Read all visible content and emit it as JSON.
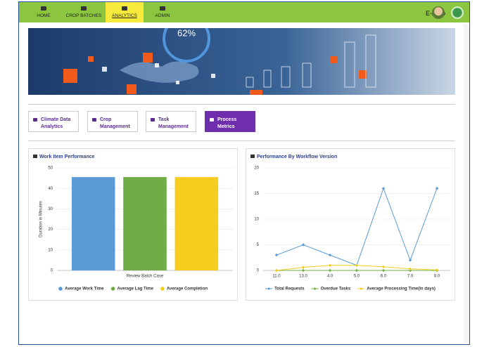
{
  "nav": {
    "items": [
      "HOME",
      "CROP BATCHES",
      "ANALYTICS",
      "ADMIN"
    ],
    "active": 2,
    "brand": "E-Agro"
  },
  "banner": {
    "text": "62%"
  },
  "tabs": {
    "items": [
      "Climate Data Analytics",
      "Crop Management",
      "Task Management",
      "Process Metrics"
    ],
    "active": 3
  },
  "chart_data": [
    {
      "type": "bar",
      "title": "Work Item Performance",
      "y_label": "Duration in Minutes",
      "categories": [
        "Review Batch Case"
      ],
      "series": [
        {
          "name": "Average Work Time",
          "color": "#5b9bd5",
          "values": [
            45.5
          ]
        },
        {
          "name": "Average Lag Time",
          "color": "#70ad47",
          "values": [
            45.5
          ]
        },
        {
          "name": "Average Completion",
          "color": "#f5cd1e",
          "values": [
            45.5
          ]
        }
      ],
      "ylim": [
        0,
        50
      ],
      "yticks": [
        0,
        10,
        20,
        30,
        40,
        50
      ],
      "grid": true
    },
    {
      "type": "line",
      "title": "Performance By Workflow Version",
      "categories": [
        "11.0",
        "13.0",
        "4.0",
        "5.0",
        "6.0",
        "7.0",
        "8.0"
      ],
      "series": [
        {
          "name": "Total Requests",
          "color": "#5b9bd5",
          "values": [
            3,
            5,
            3,
            1,
            16,
            2,
            16
          ]
        },
        {
          "name": "Overdue Tasks",
          "color": "#70ad47",
          "values": [
            0,
            0,
            0,
            0,
            0,
            0,
            0
          ]
        },
        {
          "name": "Average Processing Time(In days)",
          "color": "#f5cd1e",
          "values": [
            0,
            0.6,
            1,
            1,
            0.7,
            0.3,
            0.1
          ]
        }
      ],
      "ylim": [
        0,
        20
      ],
      "yticks": [
        0,
        5,
        10,
        15,
        20
      ],
      "grid": true
    }
  ]
}
